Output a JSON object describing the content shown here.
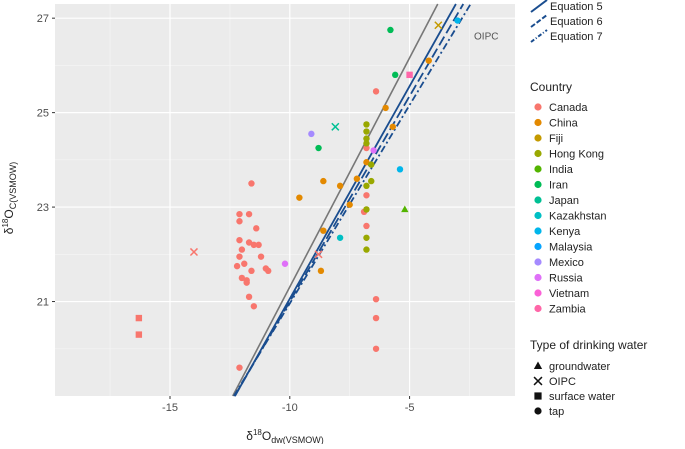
{
  "chart_data": {
    "type": "scatter",
    "xlabel": {
      "delta": "δ",
      "sup": "18",
      "main": "O",
      "sub": "dw(VSMOW)"
    },
    "ylabel": {
      "delta": "δ",
      "sup": "18",
      "main": "O",
      "sub": "C(VSMOW)"
    },
    "xlim": [
      -19.8,
      -0.6
    ],
    "ylim": [
      19.0,
      27.3
    ],
    "x_ticks": [
      -15,
      -10,
      -5
    ],
    "x_tick_labels": [
      "-15",
      "-10",
      "-5"
    ],
    "y_ticks": [
      21,
      23,
      25,
      27
    ],
    "y_tick_labels": [
      "21",
      "23",
      "25",
      "27"
    ],
    "x_minor": [
      -17.5,
      -12.5,
      -7.5,
      -2.5
    ],
    "y_minor": [
      20,
      22,
      24,
      26
    ],
    "grid": true,
    "background": "#ebebeb",
    "lines": [
      {
        "name": "OIPC",
        "slope": 0.97,
        "intercept": 31.01,
        "color": "#777777",
        "dash": "solid",
        "label": "OIPC",
        "label_pos": [
          -1.8,
          26.55
        ]
      },
      {
        "name": "Equation 5",
        "slope": 0.9,
        "intercept": 30.06,
        "color": "#1a4d8f",
        "dash": "solid"
      },
      {
        "name": "Equation 6",
        "slope": 0.87,
        "intercept": 29.7,
        "color": "#1a4d8f",
        "dash": "10,4"
      },
      {
        "name": "Equation 7",
        "slope": 0.84,
        "intercept": 29.36,
        "color": "#1a4d8f",
        "dash": "7,3,2,3"
      }
    ],
    "line_legend": [
      "Equation 5",
      "Equation 6",
      "Equation 7"
    ],
    "country_legend_title": "Country",
    "countries": [
      {
        "name": "Canada",
        "color": "#f8766d"
      },
      {
        "name": "China",
        "color": "#e38900"
      },
      {
        "name": "Fiji",
        "color": "#c49a00"
      },
      {
        "name": "Hong Kong",
        "color": "#99a800"
      },
      {
        "name": "India",
        "color": "#53b400"
      },
      {
        "name": "Iran",
        "color": "#00bc56"
      },
      {
        "name": "Japan",
        "color": "#00c094"
      },
      {
        "name": "Kazakhstan",
        "color": "#00bfc4"
      },
      {
        "name": "Kenya",
        "color": "#00b6eb"
      },
      {
        "name": "Malaysia",
        "color": "#06a4ff"
      },
      {
        "name": "Mexico",
        "color": "#a58aff"
      },
      {
        "name": "Russia",
        "color": "#df70f8"
      },
      {
        "name": "Vietnam",
        "color": "#fb61d7"
      },
      {
        "name": "Zambia",
        "color": "#ff66a8"
      }
    ],
    "type_legend_title": "Type of drinking water",
    "types": [
      {
        "name": "groundwater",
        "shape": "triangle"
      },
      {
        "name": "OIPC",
        "shape": "cross"
      },
      {
        "name": "surface water",
        "shape": "square"
      },
      {
        "name": "tap",
        "shape": "circle"
      }
    ],
    "points": [
      {
        "x": -11.6,
        "y": 23.5,
        "country": "Canada",
        "type": "tap"
      },
      {
        "x": -11.7,
        "y": 22.85,
        "country": "Canada",
        "type": "tap"
      },
      {
        "x": -12.1,
        "y": 22.85,
        "country": "Canada",
        "type": "tap"
      },
      {
        "x": -12.1,
        "y": 22.7,
        "country": "Canada",
        "type": "tap"
      },
      {
        "x": -12.1,
        "y": 22.3,
        "country": "Canada",
        "type": "tap"
      },
      {
        "x": -12.0,
        "y": 22.1,
        "country": "Canada",
        "type": "tap"
      },
      {
        "x": -12.1,
        "y": 21.95,
        "country": "Canada",
        "type": "tap"
      },
      {
        "x": -12.2,
        "y": 21.75,
        "country": "Canada",
        "type": "tap"
      },
      {
        "x": -11.9,
        "y": 21.8,
        "country": "Canada",
        "type": "tap"
      },
      {
        "x": -11.7,
        "y": 22.25,
        "country": "Canada",
        "type": "tap"
      },
      {
        "x": -11.5,
        "y": 22.2,
        "country": "Canada",
        "type": "tap"
      },
      {
        "x": -11.4,
        "y": 22.55,
        "country": "Canada",
        "type": "tap"
      },
      {
        "x": -11.3,
        "y": 22.2,
        "country": "Canada",
        "type": "tap"
      },
      {
        "x": -11.2,
        "y": 21.95,
        "country": "Canada",
        "type": "tap"
      },
      {
        "x": -11.0,
        "y": 21.7,
        "country": "Canada",
        "type": "tap"
      },
      {
        "x": -11.6,
        "y": 21.65,
        "country": "Canada",
        "type": "tap"
      },
      {
        "x": -11.8,
        "y": 21.45,
        "country": "Canada",
        "type": "tap"
      },
      {
        "x": -12.0,
        "y": 21.5,
        "country": "Canada",
        "type": "tap"
      },
      {
        "x": -11.7,
        "y": 21.1,
        "country": "Canada",
        "type": "tap"
      },
      {
        "x": -11.5,
        "y": 20.9,
        "country": "Canada",
        "type": "tap"
      },
      {
        "x": -11.8,
        "y": 21.4,
        "country": "Canada",
        "type": "tap"
      },
      {
        "x": -12.1,
        "y": 19.6,
        "country": "Canada",
        "type": "tap"
      },
      {
        "x": -10.9,
        "y": 21.65,
        "country": "Canada",
        "type": "tap"
      },
      {
        "x": -6.8,
        "y": 24.25,
        "country": "Canada",
        "type": "tap"
      },
      {
        "x": -6.8,
        "y": 23.25,
        "country": "Canada",
        "type": "tap"
      },
      {
        "x": -6.9,
        "y": 22.9,
        "country": "Canada",
        "type": "tap"
      },
      {
        "x": -6.8,
        "y": 22.6,
        "country": "Canada",
        "type": "tap"
      },
      {
        "x": -6.4,
        "y": 25.45,
        "country": "Canada",
        "type": "tap"
      },
      {
        "x": -6.4,
        "y": 21.05,
        "country": "Canada",
        "type": "tap"
      },
      {
        "x": -6.4,
        "y": 20.65,
        "country": "Canada",
        "type": "tap"
      },
      {
        "x": -6.4,
        "y": 20.0,
        "country": "Canada",
        "type": "tap"
      },
      {
        "x": -16.3,
        "y": 20.65,
        "country": "Canada",
        "type": "surface water"
      },
      {
        "x": -16.3,
        "y": 20.3,
        "country": "Canada",
        "type": "surface water"
      },
      {
        "x": -14.0,
        "y": 22.05,
        "country": "Canada",
        "type": "OIPC"
      },
      {
        "x": -8.8,
        "y": 22.0,
        "country": "Canada",
        "type": "OIPC"
      },
      {
        "x": -9.6,
        "y": 23.2,
        "country": "China",
        "type": "tap"
      },
      {
        "x": -8.6,
        "y": 23.55,
        "country": "China",
        "type": "tap"
      },
      {
        "x": -7.9,
        "y": 23.45,
        "country": "China",
        "type": "tap"
      },
      {
        "x": -7.5,
        "y": 23.05,
        "country": "China",
        "type": "tap"
      },
      {
        "x": -7.2,
        "y": 23.6,
        "country": "China",
        "type": "tap"
      },
      {
        "x": -6.8,
        "y": 23.95,
        "country": "China",
        "type": "tap"
      },
      {
        "x": -6.0,
        "y": 25.1,
        "country": "China",
        "type": "tap"
      },
      {
        "x": -5.7,
        "y": 24.7,
        "country": "China",
        "type": "tap"
      },
      {
        "x": -4.2,
        "y": 26.1,
        "country": "China",
        "type": "tap"
      },
      {
        "x": -8.6,
        "y": 22.5,
        "country": "China",
        "type": "tap"
      },
      {
        "x": -8.7,
        "y": 21.65,
        "country": "China",
        "type": "tap"
      },
      {
        "x": -3.8,
        "y": 26.85,
        "country": "Fiji",
        "type": "OIPC"
      },
      {
        "x": -6.8,
        "y": 24.75,
        "country": "Hong Kong",
        "type": "tap"
      },
      {
        "x": -6.8,
        "y": 24.6,
        "country": "Hong Kong",
        "type": "tap"
      },
      {
        "x": -6.8,
        "y": 24.45,
        "country": "Hong Kong",
        "type": "tap"
      },
      {
        "x": -6.8,
        "y": 24.35,
        "country": "Hong Kong",
        "type": "tap"
      },
      {
        "x": -6.6,
        "y": 23.55,
        "country": "Hong Kong",
        "type": "tap"
      },
      {
        "x": -6.8,
        "y": 23.45,
        "country": "Hong Kong",
        "type": "tap"
      },
      {
        "x": -6.8,
        "y": 22.95,
        "country": "Hong Kong",
        "type": "tap"
      },
      {
        "x": -6.8,
        "y": 22.35,
        "country": "Hong Kong",
        "type": "tap"
      },
      {
        "x": -6.8,
        "y": 22.1,
        "country": "Hong Kong",
        "type": "tap"
      },
      {
        "x": -6.6,
        "y": 23.9,
        "country": "Hong Kong",
        "type": "tap"
      },
      {
        "x": -5.2,
        "y": 22.95,
        "country": "India",
        "type": "groundwater"
      },
      {
        "x": -8.8,
        "y": 24.25,
        "country": "Iran",
        "type": "tap"
      },
      {
        "x": -5.8,
        "y": 26.75,
        "country": "Iran",
        "type": "tap"
      },
      {
        "x": -5.6,
        "y": 25.8,
        "country": "Iran",
        "type": "tap"
      },
      {
        "x": -8.1,
        "y": 24.7,
        "country": "Japan",
        "type": "OIPC"
      },
      {
        "x": -7.9,
        "y": 22.35,
        "country": "Kazakhstan",
        "type": "tap"
      },
      {
        "x": -3.0,
        "y": 26.95,
        "country": "Kenya",
        "type": "tap"
      },
      {
        "x": -5.4,
        "y": 23.8,
        "country": "Kenya",
        "type": "tap"
      },
      {
        "x": -9.1,
        "y": 24.55,
        "country": "Mexico",
        "type": "tap"
      },
      {
        "x": -10.2,
        "y": 21.8,
        "country": "Russia",
        "type": "tap"
      },
      {
        "x": -6.5,
        "y": 24.2,
        "country": "Russia",
        "type": "tap"
      },
      {
        "x": -5.0,
        "y": 25.8,
        "country": "Zambia",
        "type": "surface water"
      }
    ]
  }
}
